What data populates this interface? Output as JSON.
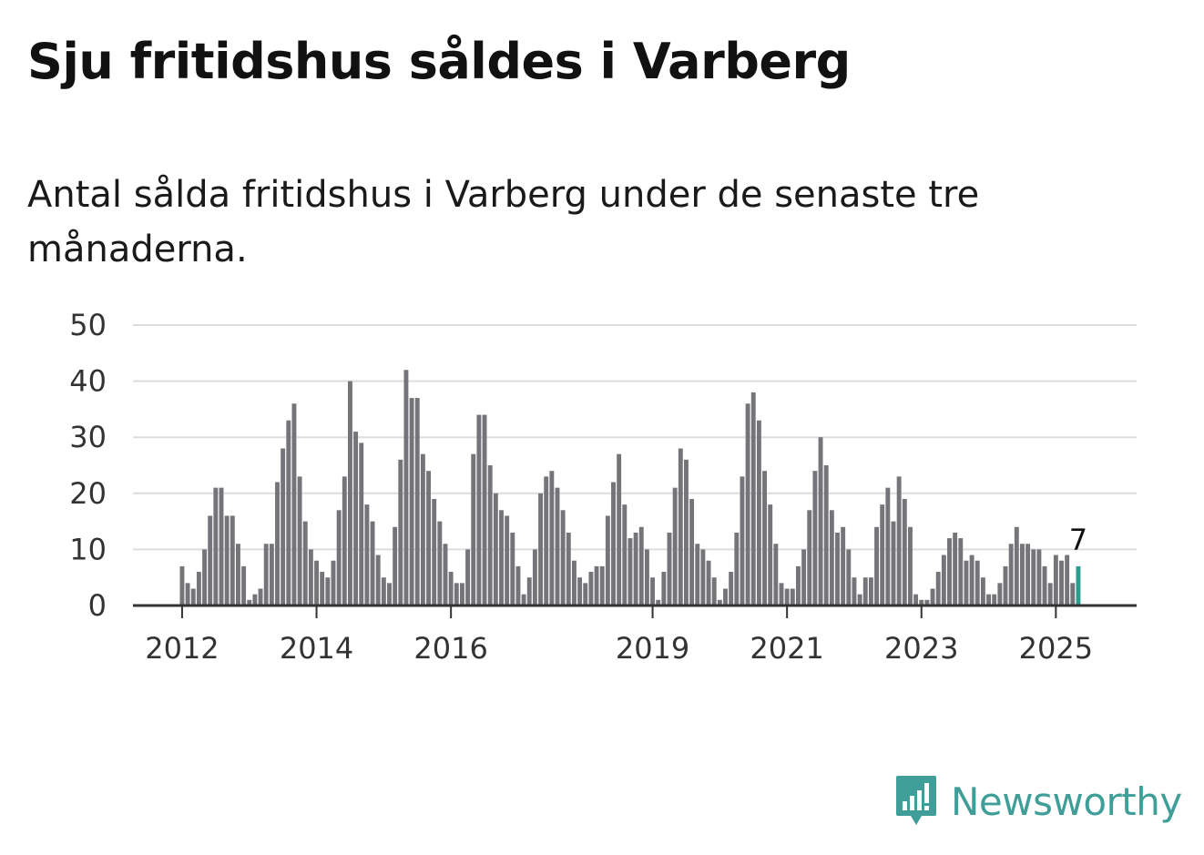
{
  "header": {
    "title": "Sju fritidshus såldes i Varberg",
    "subtitle": "Antal sålda fritidshus i Varberg under de senaste tre månaderna."
  },
  "brand": {
    "name": "Newsworthy",
    "logo_icon": "newsworthy-logo-icon",
    "color": "#3f9e97"
  },
  "colors": {
    "bar": "#757478",
    "highlight": "#2a9d8f",
    "grid": "#dddddd",
    "axis": "#333333"
  },
  "chart_data": {
    "type": "bar",
    "title": "Sju fritidshus såldes i Varberg",
    "subtitle": "Antal sålda fritidshus i Varberg under de senaste tre månaderna.",
    "xlabel": "",
    "ylabel": "",
    "ylim": [
      0,
      50
    ],
    "yticks": [
      0,
      10,
      20,
      30,
      40,
      50
    ],
    "grid": true,
    "start": "2012-01",
    "x_tick_labels": [
      "2012",
      "2014",
      "2016",
      "2019",
      "2021",
      "2023",
      "2025"
    ],
    "values": [
      7,
      4,
      3,
      6,
      10,
      16,
      21,
      21,
      16,
      16,
      11,
      7,
      1,
      2,
      3,
      11,
      11,
      22,
      28,
      33,
      36,
      23,
      15,
      10,
      8,
      6,
      5,
      8,
      17,
      23,
      40,
      31,
      29,
      18,
      15,
      9,
      5,
      4,
      14,
      26,
      42,
      37,
      37,
      27,
      24,
      19,
      15,
      11,
      6,
      4,
      4,
      10,
      27,
      34,
      34,
      25,
      20,
      17,
      16,
      13,
      7,
      2,
      5,
      10,
      20,
      23,
      24,
      21,
      17,
      13,
      8,
      5,
      4,
      6,
      7,
      7,
      16,
      22,
      27,
      18,
      12,
      13,
      14,
      10,
      5,
      1,
      6,
      13,
      21,
      28,
      26,
      19,
      11,
      10,
      8,
      5,
      1,
      3,
      6,
      13,
      23,
      36,
      38,
      33,
      24,
      18,
      11,
      4,
      3,
      3,
      7,
      10,
      17,
      24,
      30,
      25,
      17,
      13,
      14,
      10,
      5,
      2,
      5,
      5,
      14,
      18,
      21,
      15,
      23,
      19,
      14,
      2,
      1,
      1,
      3,
      6,
      9,
      12,
      13,
      12,
      8,
      9,
      8,
      5,
      2,
      2,
      4,
      7,
      11,
      14,
      11,
      11,
      10,
      10,
      7,
      4,
      9,
      8,
      9,
      4,
      7
    ],
    "highlight": {
      "index": 160,
      "value": 7,
      "label": "7"
    }
  }
}
